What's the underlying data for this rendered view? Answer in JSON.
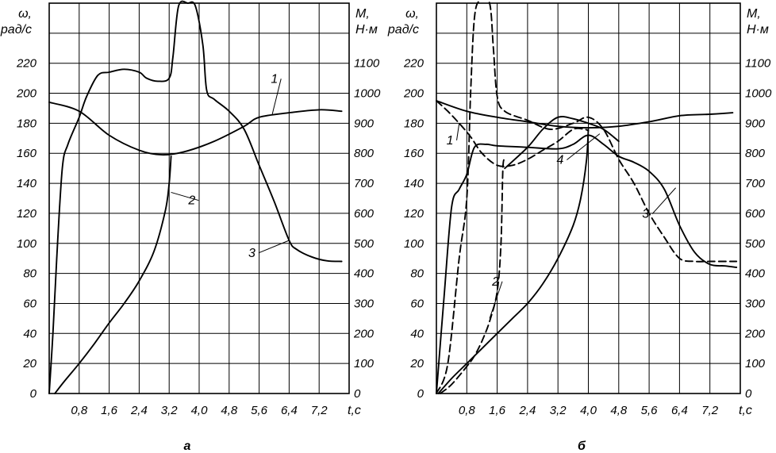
{
  "chart_data": [
    {
      "type": "line",
      "panel_caption": "а",
      "xlabel": "t,c",
      "ylabel_left": [
        "ω,",
        "рад/с"
      ],
      "ylabel_right": [
        "M,",
        "Н·м"
      ],
      "x_ticks": [
        "0,8",
        "1,6",
        "2,4",
        "3,2",
        "4,0",
        "4,8",
        "5,6",
        "6,4",
        "7,2"
      ],
      "y_left_ticks": [
        "0",
        "20",
        "40",
        "60",
        "80",
        "100",
        "120",
        "140",
        "160",
        "180",
        "200",
        "220"
      ],
      "y_right_ticks": [
        "0",
        "100",
        "200",
        "300",
        "400",
        "500",
        "600",
        "700",
        "800",
        "900",
        "1000",
        "1100"
      ],
      "xlim": [
        0,
        8.0
      ],
      "ylim_left": [
        0,
        260
      ],
      "ylim_right": [
        0,
        1300
      ],
      "grid": true,
      "series": [
        {
          "name": "1",
          "axis": "left",
          "style": "solid",
          "points": [
            [
              0,
              194
            ],
            [
              0.8,
              188
            ],
            [
              1.6,
              172
            ],
            [
              2.4,
              162
            ],
            [
              3.0,
              159
            ],
            [
              3.6,
              161
            ],
            [
              4.4,
              168
            ],
            [
              5.2,
              178
            ],
            [
              5.6,
              184
            ],
            [
              6.4,
              187
            ],
            [
              7.2,
              189
            ],
            [
              7.8,
              188
            ]
          ]
        },
        {
          "name": "2",
          "axis": "left",
          "style": "solid",
          "points": [
            [
              0.15,
              0
            ],
            [
              0.4,
              8
            ],
            [
              0.8,
              20
            ],
            [
              1.2,
              33
            ],
            [
              1.6,
              47
            ],
            [
              2.0,
              60
            ],
            [
              2.4,
              75
            ],
            [
              2.8,
              95
            ],
            [
              3.1,
              122
            ],
            [
              3.2,
              140
            ],
            [
              3.25,
              158
            ]
          ]
        },
        {
          "name": "3",
          "axis": "right",
          "style": "solid",
          "points": [
            [
              0,
              0
            ],
            [
              0.1,
              200
            ],
            [
              0.2,
              450
            ],
            [
              0.35,
              750
            ],
            [
              0.5,
              830
            ],
            [
              0.8,
              920
            ],
            [
              1.0,
              990
            ],
            [
              1.3,
              1060
            ],
            [
              1.6,
              1070
            ],
            [
              2.0,
              1080
            ],
            [
              2.4,
              1070
            ],
            [
              2.6,
              1050
            ],
            [
              2.9,
              1040
            ],
            [
              3.2,
              1050
            ],
            [
              3.3,
              1120
            ],
            [
              3.45,
              1290
            ],
            [
              3.7,
              1300
            ],
            [
              3.9,
              1290
            ],
            [
              4.1,
              1160
            ],
            [
              4.2,
              1010
            ],
            [
              4.4,
              980
            ],
            [
              4.8,
              940
            ],
            [
              5.2,
              880
            ],
            [
              5.6,
              760
            ],
            [
              6.0,
              640
            ],
            [
              6.4,
              510
            ],
            [
              6.6,
              480
            ],
            [
              7.0,
              455
            ],
            [
              7.4,
              442
            ],
            [
              7.8,
              440
            ]
          ]
        }
      ],
      "curve_labels": [
        {
          "text": "1",
          "x": 6.1,
          "y": 207,
          "anchor": [
            5.95,
            186
          ]
        },
        {
          "text": "2",
          "x": 3.9,
          "y": 126,
          "anchor": [
            3.25,
            134
          ]
        },
        {
          "text": "3",
          "x": 5.5,
          "y": 91,
          "anchor": [
            6.4,
            102
          ]
        }
      ]
    },
    {
      "type": "line",
      "panel_caption": "б",
      "xlabel": "t,c",
      "ylabel_left": [
        "ω,",
        "рад/с"
      ],
      "ylabel_right": [
        "M,",
        "Н·м"
      ],
      "x_ticks": [
        "0,8",
        "1,6",
        "2,4",
        "3,2",
        "4,0",
        "4,8",
        "5,6",
        "6,4",
        "7,2"
      ],
      "y_left_ticks": [
        "0",
        "20",
        "40",
        "60",
        "80",
        "100",
        "120",
        "140",
        "160",
        "180",
        "200",
        "220"
      ],
      "y_right_ticks": [
        "0",
        "100",
        "200",
        "300",
        "400",
        "500",
        "600",
        "700",
        "800",
        "900",
        "1000",
        "1100"
      ],
      "xlim": [
        0,
        8.0
      ],
      "ylim_left": [
        0,
        260
      ],
      "ylim_right": [
        0,
        1300
      ],
      "grid": true,
      "series": [
        {
          "name": "1",
          "axis": "left",
          "style": "solid",
          "points": [
            [
              0,
              195
            ],
            [
              0.8,
              188
            ],
            [
              1.6,
              184
            ],
            [
              2.4,
              181
            ],
            [
              3.2,
              178
            ],
            [
              4.0,
              177
            ],
            [
              4.8,
              178
            ],
            [
              5.6,
              181
            ],
            [
              6.4,
              185
            ],
            [
              7.2,
              186
            ],
            [
              7.8,
              187
            ]
          ]
        },
        {
          "name": "1",
          "axis": "left",
          "style": "dashed",
          "points": [
            [
              0,
              195
            ],
            [
              0.3,
              188
            ],
            [
              0.6,
              180
            ],
            [
              0.9,
              171
            ],
            [
              1.2,
              160
            ],
            [
              1.6,
              152
            ],
            [
              2.0,
              152
            ],
            [
              2.4,
              156
            ],
            [
              2.8,
              162
            ],
            [
              3.2,
              168
            ],
            [
              3.6,
              176
            ],
            [
              3.9,
              176
            ],
            [
              4.0,
              175
            ]
          ]
        },
        {
          "name": "2",
          "axis": "left",
          "style": "solid",
          "points": [
            [
              0.05,
              0
            ],
            [
              0.4,
              10
            ],
            [
              0.8,
              20
            ],
            [
              1.2,
              30
            ],
            [
              1.6,
              40
            ],
            [
              2.0,
              50
            ],
            [
              2.4,
              60
            ],
            [
              2.8,
              73
            ],
            [
              3.2,
              90
            ],
            [
              3.6,
              112
            ],
            [
              3.8,
              130
            ],
            [
              3.95,
              155
            ],
            [
              4.0,
              176
            ]
          ]
        },
        {
          "name": "2",
          "axis": "left",
          "style": "dashed",
          "points": [
            [
              0.1,
              0
            ],
            [
              0.4,
              6
            ],
            [
              0.8,
              18
            ],
            [
              1.0,
              25
            ],
            [
              1.2,
              35
            ],
            [
              1.4,
              48
            ],
            [
              1.6,
              68
            ],
            [
              1.7,
              100
            ],
            [
              1.75,
              150
            ],
            [
              1.8,
              155
            ]
          ]
        },
        {
          "name": "3",
          "axis": "right",
          "style": "solid",
          "points": [
            [
              0,
              0
            ],
            [
              0.2,
              320
            ],
            [
              0.4,
              620
            ],
            [
              0.6,
              680
            ],
            [
              0.8,
              730
            ],
            [
              1.0,
              820
            ],
            [
              1.3,
              830
            ],
            [
              1.6,
              825
            ],
            [
              2.4,
              820
            ],
            [
              3.2,
              815
            ],
            [
              3.6,
              830
            ],
            [
              4.0,
              860
            ],
            [
              4.4,
              830
            ],
            [
              4.8,
              790
            ],
            [
              5.2,
              770
            ],
            [
              5.6,
              740
            ],
            [
              6.0,
              680
            ],
            [
              6.4,
              560
            ],
            [
              6.8,
              470
            ],
            [
              7.2,
              430
            ],
            [
              7.6,
              425
            ],
            [
              7.9,
              420
            ]
          ]
        },
        {
          "name": "3",
          "axis": "right",
          "style": "dashed",
          "points": [
            [
              0,
              0
            ],
            [
              0.3,
              100
            ],
            [
              0.6,
              450
            ],
            [
              0.8,
              650
            ],
            [
              0.9,
              1000
            ],
            [
              1.0,
              1250
            ],
            [
              1.15,
              1310
            ],
            [
              1.4,
              1300
            ],
            [
              1.5,
              1150
            ],
            [
              1.6,
              990
            ],
            [
              1.8,
              940
            ],
            [
              2.4,
              910
            ],
            [
              3.0,
              880
            ],
            [
              3.6,
              900
            ],
            [
              4.0,
              920
            ],
            [
              4.4,
              880
            ],
            [
              4.8,
              780
            ],
            [
              5.2,
              700
            ],
            [
              5.6,
              600
            ],
            [
              6.0,
              520
            ],
            [
              6.4,
              450
            ],
            [
              6.8,
              440
            ],
            [
              7.2,
              440
            ],
            [
              7.9,
              440
            ]
          ]
        },
        {
          "name": "4",
          "axis": "right",
          "style": "solid",
          "points": [
            [
              1.8,
              750
            ],
            [
              2.4,
              820
            ],
            [
              2.8,
              880
            ],
            [
              3.2,
              920
            ],
            [
              3.6,
              915
            ],
            [
              4.0,
              900
            ],
            [
              4.4,
              880
            ],
            [
              4.8,
              840
            ]
          ]
        }
      ],
      "curve_labels": [
        {
          "text": "1",
          "x": 0.45,
          "y": 166,
          "anchor": [
            0.6,
            180
          ]
        },
        {
          "text": "2",
          "x": 1.65,
          "y": 72,
          "anchor": [
            1.4,
            50
          ]
        },
        {
          "text": "3",
          "x": 5.6,
          "y": 117,
          "anchor": [
            6.3,
            137
          ]
        },
        {
          "text": "4",
          "x": 3.35,
          "y": 153,
          "anchor": [
            4.3,
            173
          ]
        }
      ]
    }
  ]
}
